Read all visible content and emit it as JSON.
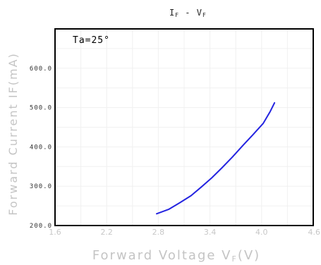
{
  "chart_data": {
    "type": "line",
    "title_main": "I",
    "title_sub1": "F",
    "title_sep": " - V",
    "title_sub2": "F",
    "annotation": "Ta=25°",
    "xlabel_main": "Forward Voltage V",
    "xlabel_sub": "F",
    "xlabel_unit": "(V)",
    "ylabel": "Forward Current IF(mA)",
    "xlim": [
      1.6,
      4.6
    ],
    "ylim": [
      200,
      700
    ],
    "x_ticks": [
      1.6,
      2.2,
      2.8,
      3.4,
      4.0,
      4.6
    ],
    "x_tick_labels": [
      "1.6",
      "2.2",
      "2.8",
      "3.4",
      "4.0",
      "4.6"
    ],
    "y_ticks": [
      200,
      300,
      400,
      500,
      600
    ],
    "y_tick_labels": [
      "200.0",
      "300.0",
      "400.0",
      "500.0",
      "600.0"
    ],
    "grid": true,
    "series": [
      {
        "color": "#2424e0",
        "x": [
          2.78,
          2.92,
          3.05,
          3.18,
          3.3,
          3.42,
          3.54,
          3.66,
          3.78,
          3.9,
          4.02,
          4.1,
          4.15
        ],
        "y": [
          230,
          241,
          258,
          276,
          298,
          321,
          347,
          374,
          403,
          431,
          460,
          490,
          512
        ]
      }
    ]
  }
}
